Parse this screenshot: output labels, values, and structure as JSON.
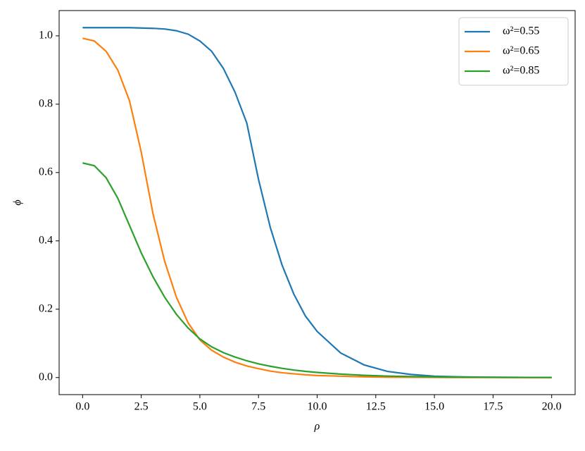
{
  "chart_data": {
    "type": "line",
    "x_label": "ρ",
    "y_label": "ϕ",
    "x": [
      0,
      0.5,
      1,
      1.5,
      2,
      2.5,
      3,
      3.5,
      4,
      4.5,
      5,
      5.5,
      6,
      6.5,
      7,
      7.5,
      8,
      8.5,
      9,
      9.5,
      10,
      11,
      12,
      13,
      14,
      15,
      16,
      17,
      18,
      19,
      20
    ],
    "series": [
      {
        "name": "ω²=0.55",
        "color": "#1f77b4",
        "values": [
          1.024,
          1.024,
          1.024,
          1.024,
          1.024,
          1.023,
          1.022,
          1.02,
          1.015,
          1.005,
          0.985,
          0.955,
          0.905,
          0.835,
          0.745,
          0.58,
          0.44,
          0.33,
          0.245,
          0.18,
          0.135,
          0.072,
          0.037,
          0.018,
          0.009,
          0.004,
          0.002,
          0.001,
          0.0005,
          0.0002,
          0
        ]
      },
      {
        "name": "ω²=0.65",
        "color": "#ff7f0e",
        "values": [
          0.993,
          0.985,
          0.955,
          0.9,
          0.81,
          0.66,
          0.48,
          0.34,
          0.235,
          0.16,
          0.11,
          0.08,
          0.06,
          0.045,
          0.034,
          0.026,
          0.019,
          0.014,
          0.011,
          0.008,
          0.006,
          0.004,
          0.002,
          0.001,
          0.0007,
          0.0004,
          0.0002,
          0.0001,
          0.0001,
          0,
          0
        ]
      },
      {
        "name": "ω²=0.85",
        "color": "#2ca02c",
        "values": [
          0.628,
          0.62,
          0.585,
          0.525,
          0.445,
          0.365,
          0.295,
          0.235,
          0.185,
          0.145,
          0.113,
          0.09,
          0.073,
          0.06,
          0.049,
          0.04,
          0.033,
          0.027,
          0.022,
          0.018,
          0.015,
          0.01,
          0.0065,
          0.0043,
          0.003,
          0.002,
          0.0013,
          0.0009,
          0.0006,
          0.0004,
          0.0003
        ]
      }
    ],
    "xlim": [
      -1.0,
      21.0
    ],
    "ylim": [
      -0.05,
      1.074
    ],
    "xticks": [
      {
        "value": 0,
        "label": "0.0"
      },
      2.5,
      {
        "value": 5,
        "label": "5.0"
      },
      7.5,
      {
        "value": 10,
        "label": "10.0"
      },
      12.5,
      {
        "value": 15,
        "label": "15.0"
      },
      17.5,
      {
        "value": 20,
        "label": "20.0"
      }
    ],
    "yticks": [
      {
        "value": 0,
        "label": "0.0"
      },
      0.2,
      0.4,
      0.6,
      0.8,
      {
        "value": 1,
        "label": "1.0"
      }
    ],
    "grid": false,
    "legend": "upper right"
  }
}
